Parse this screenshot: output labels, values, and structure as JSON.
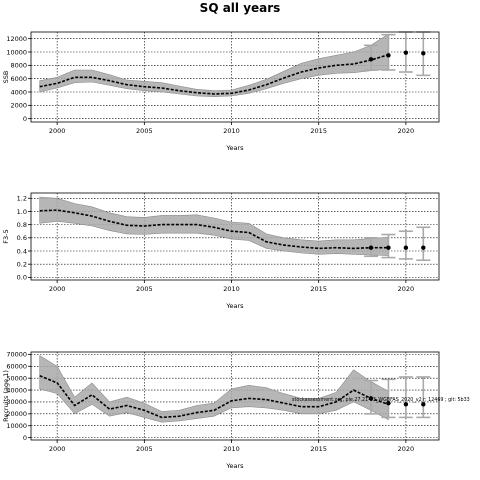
{
  "title": "SQ all years",
  "annotation": "stockassessment.org, ple.27.21-23_WGBFAS_2020_v2 r: 12469 ; git: 5b33",
  "colors": {
    "band": "#a9a9a9",
    "line": "#000000",
    "grid": "#000000",
    "error_bar": "#a9a9a9"
  },
  "chart_data": [
    {
      "type": "line",
      "title": "",
      "xlabel": "Years",
      "ylabel": "SSB",
      "xlim": [
        1998.5,
        2021.9
      ],
      "ylim": [
        -500,
        13000
      ],
      "xticks": [
        2000,
        2005,
        2010,
        2015,
        2020
      ],
      "yticks": [
        0,
        2000,
        4000,
        6000,
        8000,
        10000,
        12000
      ],
      "grid": true,
      "series": [
        {
          "x": [
            1999,
            2000,
            2001,
            2002,
            2003,
            2004,
            2005,
            2006,
            2007,
            2008,
            2009,
            2010,
            2011,
            2012,
            2013,
            2014,
            2015,
            2016,
            2017,
            2018,
            2019
          ],
          "values": [
            4800,
            5300,
            6200,
            6200,
            5700,
            5100,
            4800,
            4600,
            4200,
            3900,
            3700,
            3800,
            4300,
            5100,
            6100,
            7000,
            7600,
            8000,
            8200,
            8800,
            9600
          ],
          "lower": [
            4000,
            4600,
            5400,
            5500,
            5000,
            4500,
            4200,
            4000,
            3700,
            3400,
            3300,
            3400,
            3800,
            4500,
            5300,
            6000,
            6500,
            6800,
            6900,
            7200,
            7400
          ],
          "upper": [
            5700,
            6200,
            7300,
            7300,
            6600,
            5800,
            5600,
            5400,
            4900,
            4400,
            4200,
            4300,
            5000,
            5900,
            7100,
            8300,
            9000,
            9500,
            10000,
            11000,
            12700
          ]
        }
      ],
      "projection": {
        "x": [
          2018,
          2019,
          2020,
          2021
        ],
        "values": [
          8900,
          9500,
          9900,
          9800
        ],
        "lower": [
          7300,
          7300,
          7000,
          6500
        ],
        "upper": [
          11000,
          12600,
          13000,
          13000
        ]
      }
    },
    {
      "type": "line",
      "title": "",
      "xlabel": "Years",
      "ylabel": "F3-5",
      "xlim": [
        1998.5,
        2021.9
      ],
      "ylim": [
        -0.04,
        1.28
      ],
      "xticks": [
        2000,
        2005,
        2010,
        2015,
        2020
      ],
      "yticks": [
        0.0,
        0.2,
        0.4,
        0.6,
        0.8,
        1.0,
        1.2
      ],
      "grid": true,
      "series": [
        {
          "x": [
            1999,
            2000,
            2001,
            2002,
            2003,
            2004,
            2005,
            2006,
            2007,
            2008,
            2009,
            2010,
            2011,
            2012,
            2013,
            2014,
            2015,
            2016,
            2017,
            2018,
            2019
          ],
          "values": [
            1.01,
            1.02,
            0.98,
            0.93,
            0.85,
            0.79,
            0.78,
            0.8,
            0.8,
            0.8,
            0.76,
            0.7,
            0.68,
            0.54,
            0.49,
            0.46,
            0.44,
            0.45,
            0.44,
            0.45,
            0.45
          ],
          "lower": [
            0.82,
            0.85,
            0.82,
            0.78,
            0.71,
            0.66,
            0.65,
            0.67,
            0.67,
            0.67,
            0.64,
            0.58,
            0.56,
            0.44,
            0.4,
            0.37,
            0.35,
            0.36,
            0.35,
            0.34,
            0.33
          ],
          "upper": [
            1.22,
            1.2,
            1.12,
            1.07,
            0.98,
            0.92,
            0.91,
            0.94,
            0.94,
            0.95,
            0.9,
            0.84,
            0.82,
            0.66,
            0.6,
            0.57,
            0.55,
            0.57,
            0.57,
            0.59,
            0.61
          ]
        }
      ],
      "projection": {
        "x": [
          2018,
          2019,
          2020,
          2021
        ],
        "values": [
          0.45,
          0.45,
          0.45,
          0.45
        ],
        "lower": [
          0.32,
          0.3,
          0.28,
          0.26
        ],
        "upper": [
          0.6,
          0.65,
          0.7,
          0.76
        ]
      }
    },
    {
      "type": "line",
      "title": "",
      "xlabel": "Years",
      "ylabel": "Recruits (age 1)",
      "xlim": [
        1998.5,
        2021.9
      ],
      "ylim": [
        -2000,
        72000
      ],
      "xticks": [
        2000,
        2005,
        2010,
        2015,
        2020
      ],
      "yticks": [
        0,
        10000,
        20000,
        30000,
        40000,
        50000,
        60000,
        70000
      ],
      "grid": true,
      "series": [
        {
          "x": [
            1999,
            2000,
            2001,
            2002,
            2003,
            2004,
            2005,
            2006,
            2007,
            2008,
            2009,
            2010,
            2011,
            2012,
            2013,
            2014,
            2015,
            2016,
            2017,
            2018,
            2019
          ],
          "values": [
            52000,
            46000,
            27000,
            36000,
            24000,
            27000,
            23000,
            17000,
            18000,
            21000,
            23000,
            31000,
            33000,
            32000,
            29000,
            26000,
            26000,
            30000,
            40000,
            33000,
            28000
          ],
          "lower": [
            41000,
            37000,
            20000,
            28000,
            18000,
            21000,
            17000,
            13000,
            14000,
            16000,
            18000,
            25000,
            26000,
            25000,
            23000,
            20000,
            20000,
            23000,
            30000,
            23000,
            15000
          ],
          "upper": [
            69000,
            60000,
            34000,
            46000,
            30000,
            34000,
            29000,
            22000,
            23000,
            27000,
            29000,
            41000,
            44000,
            42000,
            37000,
            33000,
            33000,
            38000,
            57000,
            47000,
            39000
          ]
        }
      ],
      "projection": {
        "x": [
          2018,
          2019,
          2020,
          2021
        ],
        "values": [
          33000,
          29000,
          28000,
          28000
        ],
        "lower": [
          20000,
          17000,
          17000,
          17000
        ],
        "upper": [
          48000,
          49000,
          51000,
          51000
        ]
      }
    }
  ]
}
